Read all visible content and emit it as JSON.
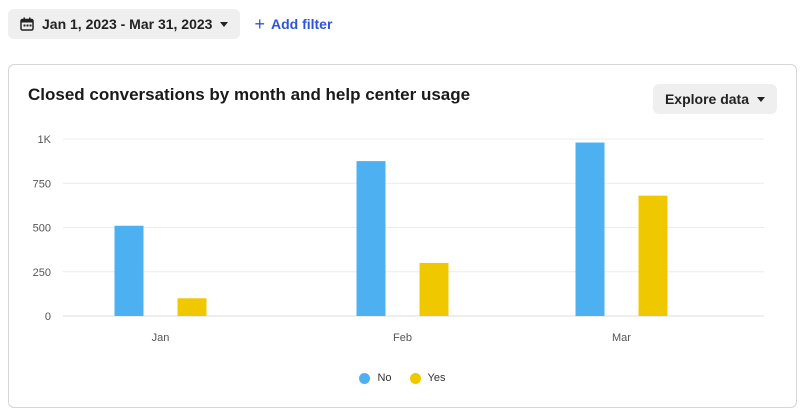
{
  "toolbar": {
    "date_range": "Jan 1, 2023 - Mar 31, 2023",
    "add_filter": "Add filter"
  },
  "card": {
    "title": "Closed conversations by month and help center usage",
    "explore_button": "Explore data"
  },
  "chart_data": {
    "type": "bar",
    "categories": [
      "Jan",
      "Feb",
      "Mar"
    ],
    "series": [
      {
        "name": "No",
        "values": [
          510,
          875,
          980
        ],
        "color": "#4db0f0"
      },
      {
        "name": "Yes",
        "values": [
          100,
          300,
          680
        ],
        "color": "#f0c800"
      }
    ],
    "yticks": [
      {
        "value": 0,
        "label": "0"
      },
      {
        "value": 250,
        "label": "250"
      },
      {
        "value": 500,
        "label": "500"
      },
      {
        "value": 750,
        "label": "750"
      },
      {
        "value": 1000,
        "label": "1K"
      }
    ],
    "ylim": [
      0,
      1000
    ],
    "grid": true,
    "legend_position": "bottom-center"
  }
}
